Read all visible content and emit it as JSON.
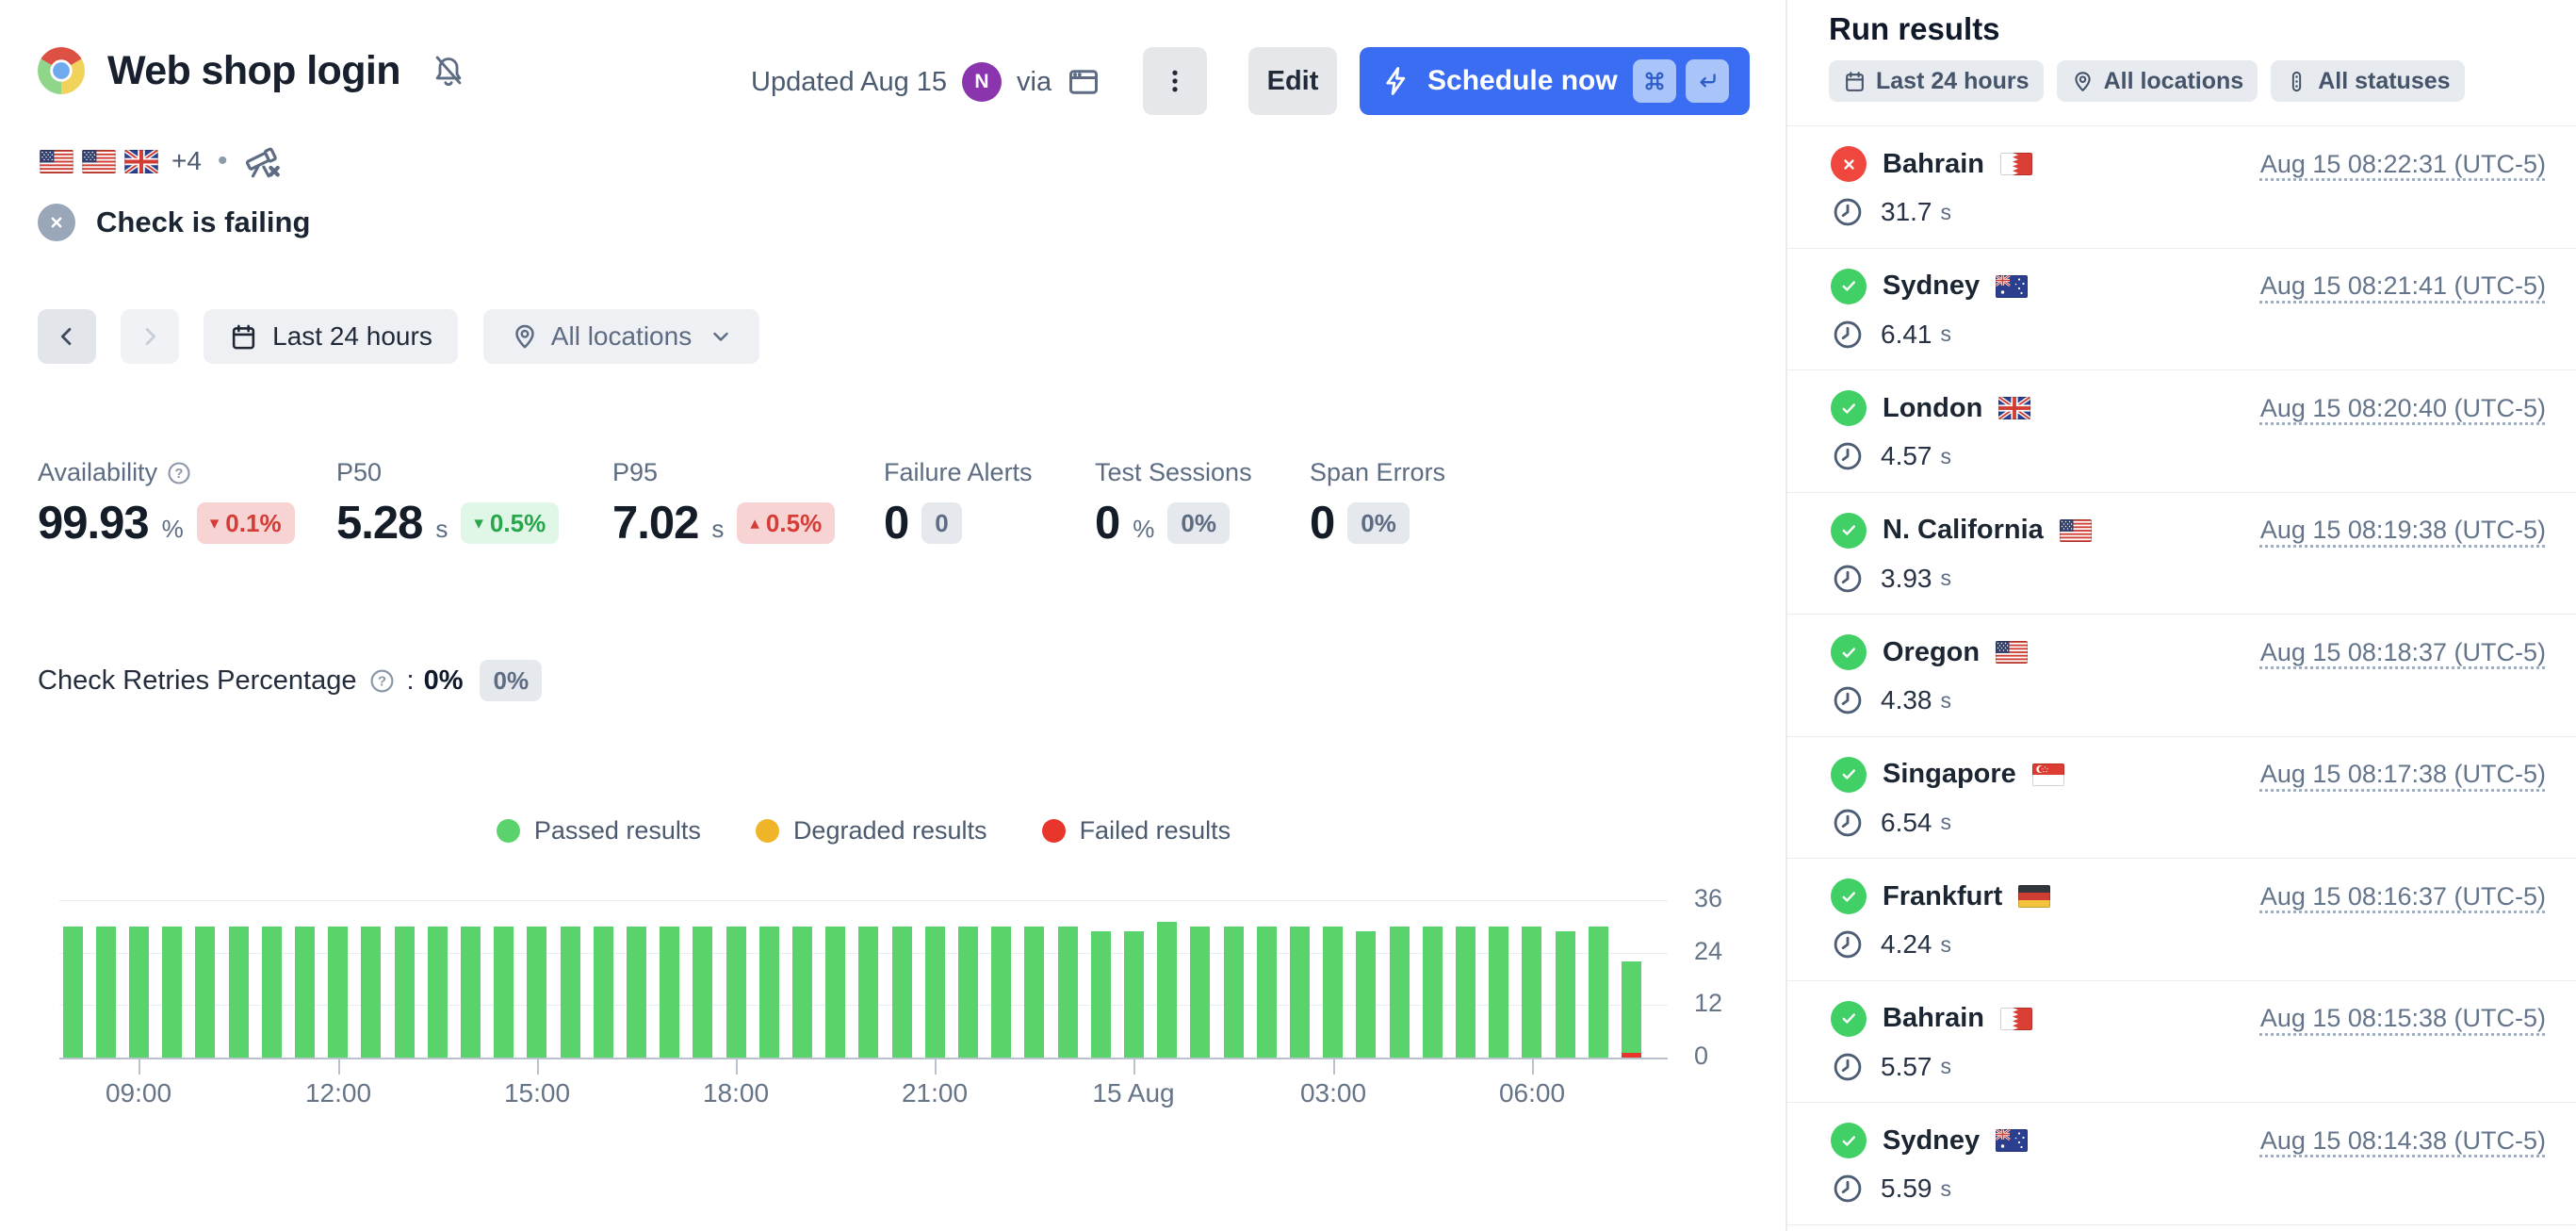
{
  "colors": {
    "accent_blue": "#3b6df2",
    "passed_green": "#5bd36d",
    "degraded_amber": "#f0b429",
    "failed_red": "#e8362c",
    "failed_status_circle": "#ef463d",
    "passed_status_circle": "#41d065",
    "avatar_purple": "#8a35ad",
    "muted_status_gray": "#9aa7b8"
  },
  "header": {
    "title": "Web shop login",
    "check_type_icon": "chrome-icon",
    "muted_bell_icon": "bell-slash-icon",
    "flags": [
      "us",
      "us",
      "gb"
    ],
    "extra_locations": "+4",
    "dot_separator": "•",
    "status": {
      "text": "Check is failing"
    },
    "updated_label": "Updated Aug 15",
    "avatar_initial": "N",
    "via_label": "via",
    "edit_label": "Edit",
    "schedule_label": "Schedule now",
    "shortcut_keys": [
      "cmd",
      "return"
    ]
  },
  "controls": {
    "time_range_label": "Last 24 hours",
    "locations_label": "All locations"
  },
  "metrics": [
    {
      "label": "Availability",
      "help": true,
      "value": "99.93",
      "unit": "%",
      "badge": {
        "text": "0.1%",
        "direction": "down",
        "tone": "bad"
      }
    },
    {
      "label": "P50",
      "help": false,
      "value": "5.28",
      "unit": "s",
      "badge": {
        "text": "0.5%",
        "direction": "down",
        "tone": "good"
      }
    },
    {
      "label": "P95",
      "help": false,
      "value": "7.02",
      "unit": "s",
      "badge": {
        "text": "0.5%",
        "direction": "up",
        "tone": "bad"
      }
    },
    {
      "label": "Failure Alerts",
      "help": false,
      "value": "0",
      "unit": "",
      "badge": {
        "text": "0",
        "direction": "",
        "tone": "neutral"
      }
    },
    {
      "label": "Test Sessions",
      "help": false,
      "value": "0",
      "unit": "%",
      "badge": {
        "text": "0%",
        "direction": "",
        "tone": "neutral"
      }
    },
    {
      "label": "Span Errors",
      "help": false,
      "value": "0",
      "unit": "",
      "badge": {
        "text": "0%",
        "direction": "",
        "tone": "neutral"
      }
    }
  ],
  "retries": {
    "label": "Check Retries Percentage",
    "colon": ":",
    "value": "0%",
    "badge": "0%"
  },
  "chart_data": {
    "type": "bar",
    "stacked": true,
    "title": "",
    "xlabel": "",
    "ylabel": "",
    "grid": true,
    "legend_position": "top-center",
    "y_axis_side": "right",
    "ylim": [
      0,
      36
    ],
    "y_ticks": [
      36,
      24,
      12,
      0
    ],
    "x_tick_labels": [
      "09:00",
      "12:00",
      "15:00",
      "18:00",
      "21:00",
      "15 Aug",
      "03:00",
      "06:00"
    ],
    "x_tick_bar_indices": [
      2,
      8,
      14,
      20,
      26,
      32,
      38,
      44
    ],
    "series": [
      {
        "name": "Passed results",
        "color": "#5bd36d",
        "values": [
          30,
          30,
          30,
          30,
          30,
          30,
          30,
          30,
          30,
          30,
          30,
          30,
          30,
          30,
          30,
          30,
          30,
          30,
          30,
          30,
          30,
          30,
          30,
          30,
          30,
          30,
          30,
          30,
          30,
          30,
          30,
          29,
          29,
          31,
          30,
          30,
          30,
          30,
          30,
          29,
          30,
          30,
          30,
          30,
          30,
          29,
          30,
          21
        ]
      },
      {
        "name": "Degraded results",
        "color": "#f0b429",
        "values": [
          0,
          0,
          0,
          0,
          0,
          0,
          0,
          0,
          0,
          0,
          0,
          0,
          0,
          0,
          0,
          0,
          0,
          0,
          0,
          0,
          0,
          0,
          0,
          0,
          0,
          0,
          0,
          0,
          0,
          0,
          0,
          0,
          0,
          0,
          0,
          0,
          0,
          0,
          0,
          0,
          0,
          0,
          0,
          0,
          0,
          0,
          0,
          0
        ]
      },
      {
        "name": "Failed results",
        "color": "#e8362c",
        "values": [
          0,
          0,
          0,
          0,
          0,
          0,
          0,
          0,
          0,
          0,
          0,
          0,
          0,
          0,
          0,
          0,
          0,
          0,
          0,
          0,
          0,
          0,
          0,
          0,
          0,
          0,
          0,
          0,
          0,
          0,
          0,
          0,
          0,
          0,
          0,
          0,
          0,
          0,
          0,
          0,
          0,
          0,
          0,
          0,
          0,
          0,
          0,
          1
        ]
      }
    ]
  },
  "sidebar": {
    "title": "Run results",
    "filters": [
      {
        "label": "Last 24 hours",
        "icon": "calendar-icon"
      },
      {
        "label": "All locations",
        "icon": "pin-icon"
      },
      {
        "label": "All statuses",
        "icon": "statuses-icon"
      }
    ],
    "runs": [
      {
        "location": "Bahrain",
        "flag": "bh",
        "status": "failed",
        "duration": "31.7",
        "duration_unit": "s",
        "timestamp": "Aug 15 08:22:31 (UTC-5)"
      },
      {
        "location": "Sydney",
        "flag": "au",
        "status": "passed",
        "duration": "6.41",
        "duration_unit": "s",
        "timestamp": "Aug 15 08:21:41 (UTC-5)"
      },
      {
        "location": "London",
        "flag": "gb",
        "status": "passed",
        "duration": "4.57",
        "duration_unit": "s",
        "timestamp": "Aug 15 08:20:40 (UTC-5)"
      },
      {
        "location": "N. California",
        "flag": "us",
        "status": "passed",
        "duration": "3.93",
        "duration_unit": "s",
        "timestamp": "Aug 15 08:19:38 (UTC-5)"
      },
      {
        "location": "Oregon",
        "flag": "us",
        "status": "passed",
        "duration": "4.38",
        "duration_unit": "s",
        "timestamp": "Aug 15 08:18:37 (UTC-5)"
      },
      {
        "location": "Singapore",
        "flag": "sg",
        "status": "passed",
        "duration": "6.54",
        "duration_unit": "s",
        "timestamp": "Aug 15 08:17:38 (UTC-5)"
      },
      {
        "location": "Frankfurt",
        "flag": "de",
        "status": "passed",
        "duration": "4.24",
        "duration_unit": "s",
        "timestamp": "Aug 15 08:16:37 (UTC-5)"
      },
      {
        "location": "Bahrain",
        "flag": "bh",
        "status": "passed",
        "duration": "5.57",
        "duration_unit": "s",
        "timestamp": "Aug 15 08:15:38 (UTC-5)"
      },
      {
        "location": "Sydney",
        "flag": "au",
        "status": "passed",
        "duration": "5.59",
        "duration_unit": "s",
        "timestamp": "Aug 15 08:14:38 (UTC-5)"
      }
    ]
  }
}
